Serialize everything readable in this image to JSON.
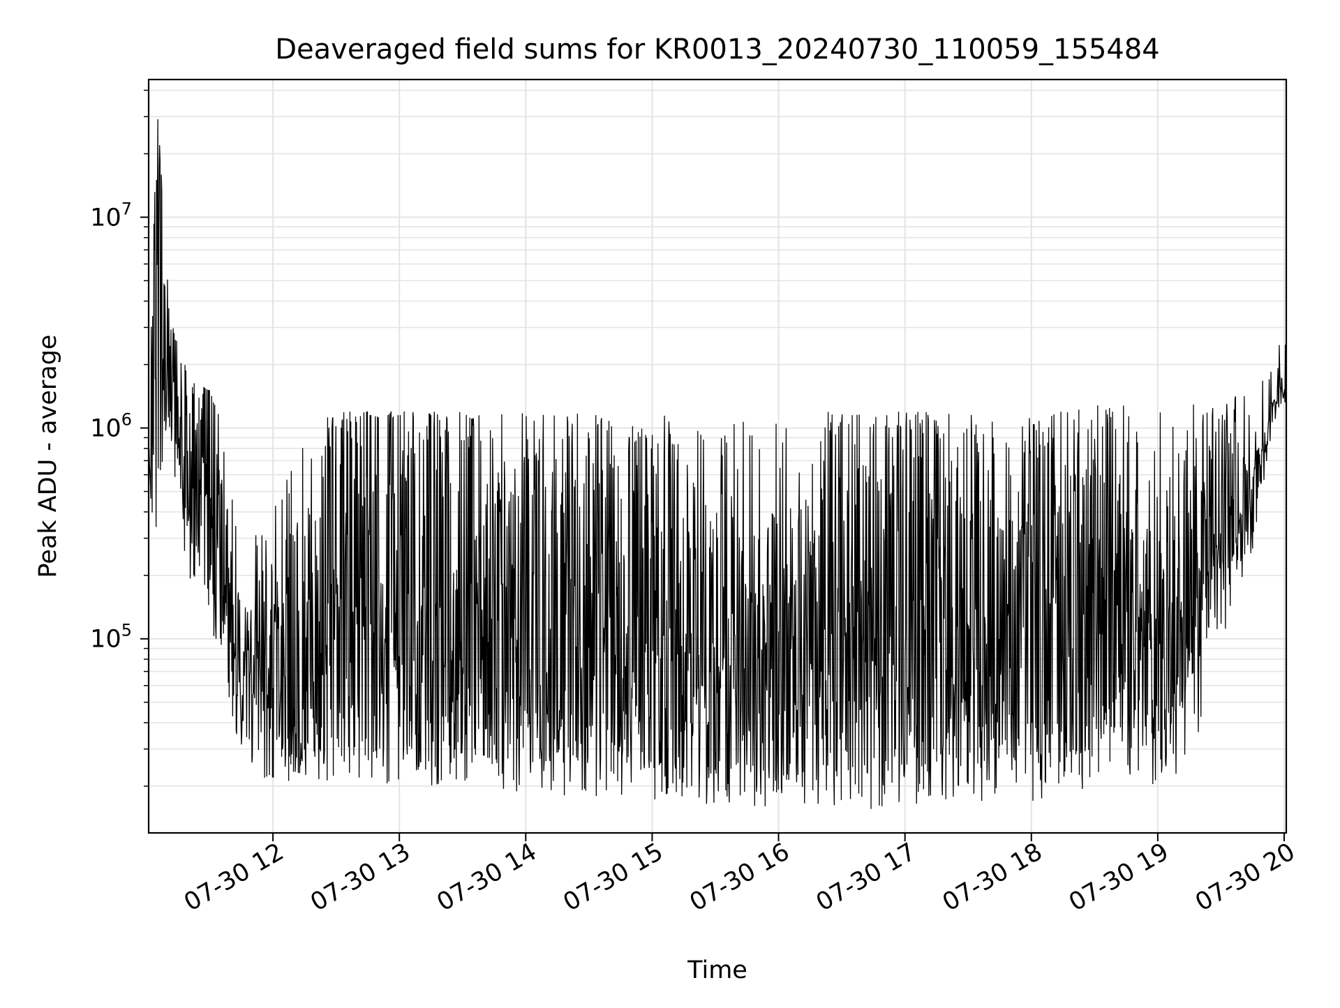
{
  "chart_data": {
    "type": "line",
    "title": "Deaveraged field sums for KR0013_20240730_110059_155484",
    "xlabel": "Time",
    "ylabel": "Peak ADU - average",
    "yscale": "log",
    "ylim": [
      12000,
      45000000
    ],
    "xlim": [
      "07-30 11:01",
      "07-30 20:01"
    ],
    "grid": true,
    "line_color": "#000000",
    "grid_color": "#e4e4e4",
    "xtick_labels": [
      "07-30 12",
      "07-30 13",
      "07-30 14",
      "07-30 15",
      "07-30 16",
      "07-30 17",
      "07-30 18",
      "07-30 19",
      "07-30 20"
    ],
    "ytick_labels": [
      {
        "base": "10",
        "exp": "5",
        "value": 100000
      },
      {
        "base": "10",
        "exp": "6",
        "value": 1000000
      },
      {
        "base": "10",
        "exp": "7",
        "value": 10000000
      }
    ],
    "series": [
      {
        "x": [
          "07-30 11:01",
          "07-30 11:05",
          "07-30 11:10",
          "07-30 11:15",
          "07-30 11:20",
          "07-30 11:25",
          "07-30 11:30",
          "07-30 11:35",
          "07-30 11:40",
          "07-30 11:45",
          "07-30 11:50",
          "07-30 11:55",
          "07-30 12:00",
          "07-30 12:15",
          "07-30 12:30",
          "07-30 12:45",
          "07-30 13:00",
          "07-30 13:15",
          "07-30 13:30",
          "07-30 13:45",
          "07-30 14:00",
          "07-30 14:15",
          "07-30 14:30",
          "07-30 14:45",
          "07-30 15:00",
          "07-30 15:15",
          "07-30 15:30",
          "07-30 15:45",
          "07-30 16:00",
          "07-30 16:15",
          "07-30 16:30",
          "07-30 16:45",
          "07-30 17:00",
          "07-30 17:15",
          "07-30 17:30",
          "07-30 17:45",
          "07-30 18:00",
          "07-30 18:15",
          "07-30 18:30",
          "07-30 18:45",
          "07-30 19:00",
          "07-30 19:15",
          "07-30 19:30",
          "07-30 19:45",
          "07-30 19:55",
          "07-30 20:01"
        ],
        "upper": [
          1000000,
          33000000,
          6000000,
          2200000,
          1400000,
          1600000,
          1500000,
          1000000,
          300000,
          150000,
          130000,
          150000,
          160000,
          500000,
          1000000,
          1100000,
          1100000,
          1100000,
          1100000,
          800000,
          700000,
          600000,
          700000,
          700000,
          900000,
          800000,
          500000,
          400000,
          400000,
          500000,
          900000,
          1000000,
          1000000,
          800000,
          700000,
          600000,
          700000,
          900000,
          1000000,
          900000,
          300000,
          1000000,
          1100000,
          700000,
          1500000,
          2000000
        ],
        "lower": [
          400000,
          400000,
          1500000,
          600000,
          300000,
          250000,
          200000,
          100000,
          50000,
          35000,
          30000,
          28000,
          28000,
          27000,
          28000,
          27000,
          26000,
          27000,
          28000,
          27000,
          27000,
          26000,
          27000,
          26000,
          25000,
          24000,
          22000,
          21000,
          21000,
          22000,
          23000,
          23000,
          24000,
          25000,
          26000,
          26000,
          26000,
          27000,
          30000,
          40000,
          28000,
          60000,
          150000,
          300000,
          1300000,
          1300000
        ],
        "spike_max": [
          1200000,
          33000000,
          6000000,
          3600000,
          1700000,
          1600000,
          1500000,
          1400000,
          700000,
          400000,
          300000,
          400000,
          400000,
          1000000,
          1200000,
          1200000,
          1200000,
          1200000,
          1200000,
          1200000,
          1200000,
          1200000,
          1200000,
          1200000,
          1200000,
          1200000,
          1200000,
          1200000,
          1200000,
          1200000,
          1200000,
          1200000,
          1200000,
          1200000,
          1200000,
          1200000,
          1200000,
          1200000,
          1300000,
          1300000,
          1200000,
          1300000,
          1300000,
          1800000,
          2300000,
          3200000
        ],
        "spike_min": [
          350000,
          330000,
          1100000,
          320000,
          150000,
          160000,
          120000,
          80000,
          45000,
          28000,
          22000,
          20000,
          19000,
          21000,
          21000,
          21000,
          20000,
          20000,
          21000,
          19000,
          18000,
          17000,
          18000,
          17000,
          17000,
          17000,
          16000,
          16000,
          16000,
          16000,
          16000,
          15500,
          16000,
          16000,
          17000,
          17000,
          17000,
          18000,
          20000,
          22000,
          20000,
          25000,
          80000,
          250000,
          1100000,
          1000000
        ]
      }
    ]
  }
}
